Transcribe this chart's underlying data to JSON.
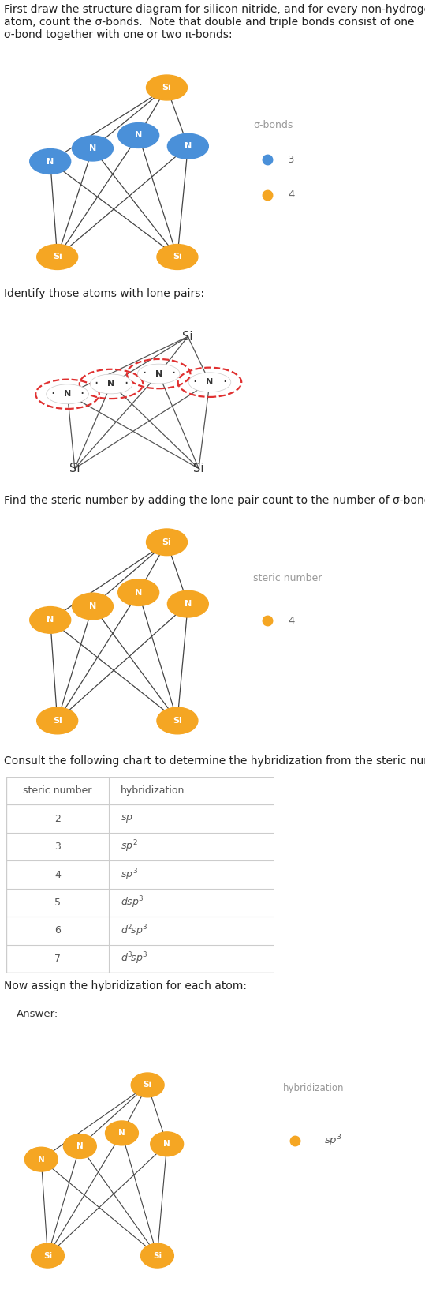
{
  "bg_color": "#ffffff",
  "si_color": "#f5a623",
  "n_color_filled": "#4a90d9",
  "n_color_orange": "#f5a623",
  "n_outline_color": "#e03030",
  "section1_title": "First draw the structure diagram for silicon nitride, and for every non-hydrogen\natom, count the σ-bonds.  Note that double and triple bonds consist of one\nσ-bond together with one or two π-bonds:",
  "section2_title": "Identify those atoms with lone pairs:",
  "section3_title": "Find the steric number by adding the lone pair count to the number of σ-bonds:",
  "section4_title": "Consult the following chart to determine the hybridization from the steric number:",
  "section5_title": "Now assign the hybridization for each atom:",
  "table_steric": [
    2,
    3,
    4,
    5,
    6,
    7
  ],
  "table_hybrid": [
    "sp",
    "sp^2",
    "sp^3",
    "dsp^3",
    "d^2sp^3",
    "d^3sp^3"
  ],
  "legend1_label": "σ-bonds",
  "legend1_items": [
    [
      "3",
      "#4a90d9"
    ],
    [
      "4",
      "#f5a623"
    ]
  ],
  "legend3_label": "steric number",
  "legend3_items": [
    [
      "4",
      "#f5a623"
    ]
  ],
  "legend5_label": "hybridization",
  "legend5_item_label": "sp³",
  "legend5_item_color": "#f5a623",
  "answer_bg": "#daeefa",
  "answer_border": "#5aaad0",
  "divider_color": "#cccccc",
  "text_color": "#222222",
  "legend_text_color": "#999999"
}
